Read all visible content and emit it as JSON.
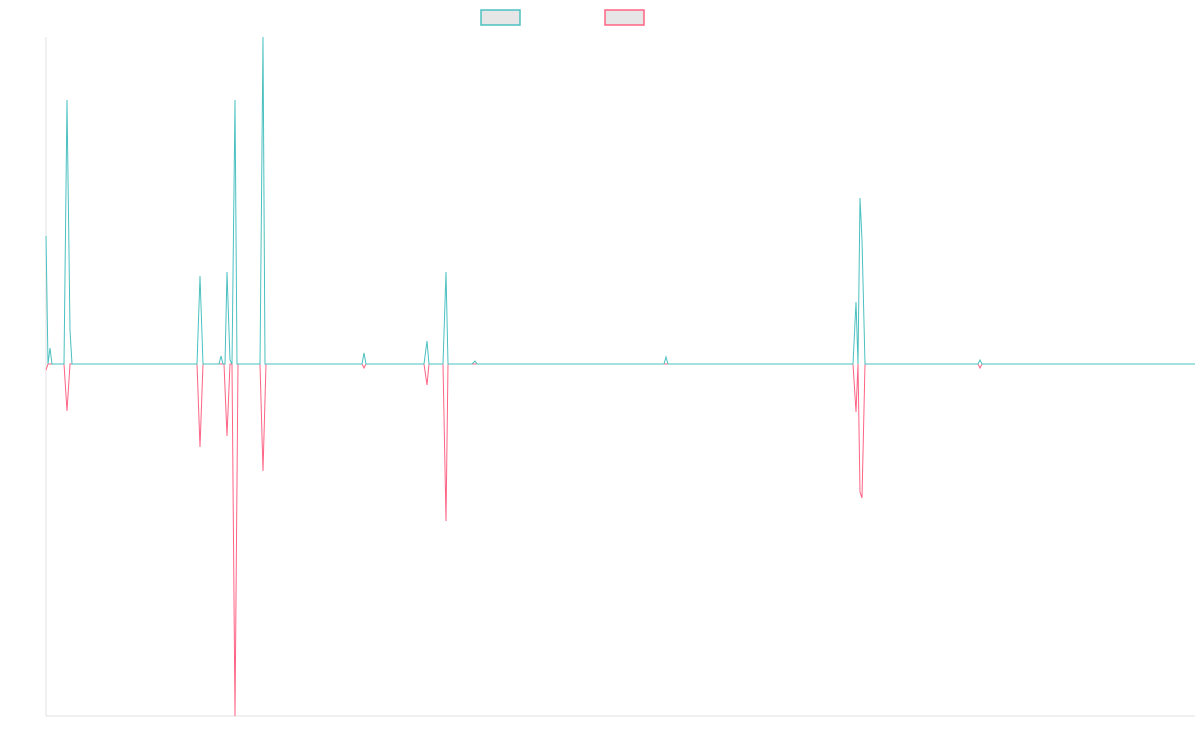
{
  "chart_data": {
    "type": "line",
    "title": "",
    "xlabel": "",
    "ylabel": "",
    "xlim": [
      0,
      1149
    ],
    "ylim": [
      -352,
      327
    ],
    "grid": false,
    "legend_position": "top-center",
    "colors": {
      "series_a": "#4bc0c0",
      "series_b": "#ff6384",
      "legend_fill": "#e6e6e6",
      "axis": "#e0e0e0"
    },
    "series": [
      {
        "name": "",
        "color": "#4bc0c0",
        "points": [
          [
            0,
            128
          ],
          [
            2,
            0
          ],
          [
            4,
            16
          ],
          [
            6,
            0
          ],
          [
            18,
            0
          ],
          [
            21,
            264
          ],
          [
            24,
            34
          ],
          [
            26,
            0
          ],
          [
            151,
            0
          ],
          [
            154,
            88
          ],
          [
            157,
            0
          ],
          [
            173,
            0
          ],
          [
            175,
            8
          ],
          [
            177,
            0
          ],
          [
            179,
            0
          ],
          [
            181,
            92
          ],
          [
            184,
            4
          ],
          [
            186,
            0
          ],
          [
            189,
            264
          ],
          [
            191,
            0
          ],
          [
            214,
            0
          ],
          [
            217,
            327
          ],
          [
            219,
            0
          ],
          [
            316,
            0
          ],
          [
            318,
            11
          ],
          [
            320,
            0
          ],
          [
            378,
            0
          ],
          [
            381,
            23
          ],
          [
            383,
            0
          ],
          [
            397,
            0
          ],
          [
            400,
            92
          ],
          [
            402,
            0
          ],
          [
            426,
            0
          ],
          [
            429,
            3
          ],
          [
            431,
            0
          ],
          [
            618,
            0
          ],
          [
            620,
            7
          ],
          [
            622,
            0
          ],
          [
            807,
            0
          ],
          [
            810,
            62
          ],
          [
            812,
            0
          ],
          [
            814,
            166
          ],
          [
            816,
            124
          ],
          [
            819,
            0
          ],
          [
            932,
            0
          ],
          [
            934,
            4
          ],
          [
            936,
            0
          ],
          [
            1149,
            0
          ]
        ]
      },
      {
        "name": "",
        "color": "#ff6384",
        "points": [
          [
            0,
            -6
          ],
          [
            2,
            0
          ],
          [
            18,
            0
          ],
          [
            21,
            -47
          ],
          [
            24,
            0
          ],
          [
            151,
            0
          ],
          [
            154,
            -83
          ],
          [
            157,
            0
          ],
          [
            178,
            0
          ],
          [
            181,
            -72
          ],
          [
            184,
            0
          ],
          [
            186,
            0
          ],
          [
            189,
            -352
          ],
          [
            192,
            0
          ],
          [
            214,
            0
          ],
          [
            217,
            -107
          ],
          [
            220,
            0
          ],
          [
            316,
            0
          ],
          [
            318,
            -4
          ],
          [
            320,
            0
          ],
          [
            378,
            0
          ],
          [
            381,
            -21
          ],
          [
            383,
            0
          ],
          [
            397,
            0
          ],
          [
            400,
            -157
          ],
          [
            402,
            0
          ],
          [
            807,
            0
          ],
          [
            810,
            -48
          ],
          [
            812,
            0
          ],
          [
            814,
            -128
          ],
          [
            816,
            -134
          ],
          [
            819,
            0
          ],
          [
            932,
            0
          ],
          [
            934,
            -4
          ],
          [
            936,
            0
          ],
          [
            1149,
            0
          ]
        ]
      }
    ]
  }
}
